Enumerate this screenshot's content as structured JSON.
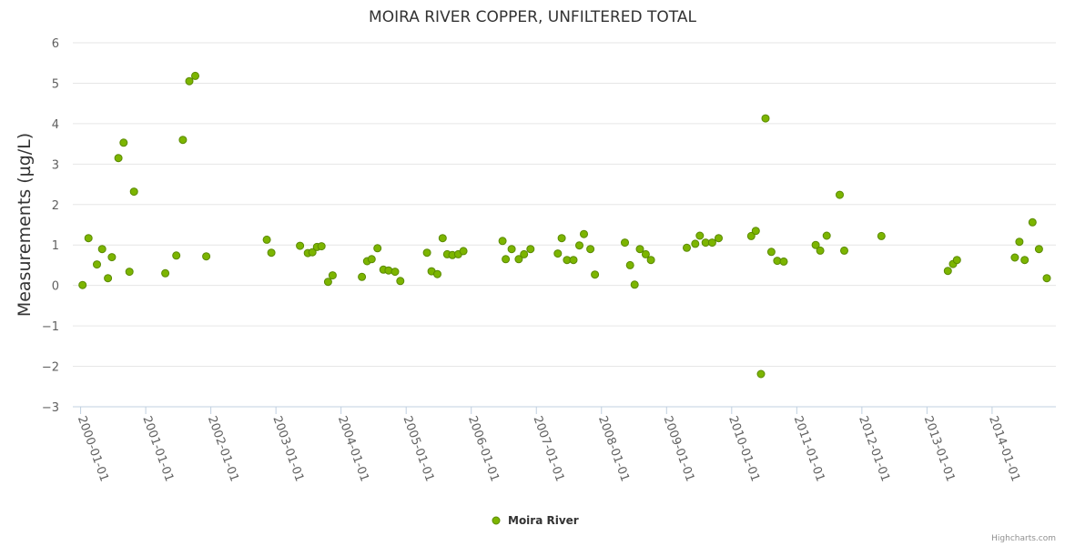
{
  "chart_data": {
    "type": "scatter",
    "title": "MOIRA RIVER COPPER, UNFILTERED TOTAL",
    "xlabel": "",
    "ylabel": "Measurements (µg/L)",
    "ylim": [
      -3,
      6
    ],
    "yticks": [
      6,
      5,
      4,
      3,
      2,
      1,
      0,
      -1,
      -2,
      -3
    ],
    "xlim": [
      1999.88,
      2014.98
    ],
    "xticks": [
      {
        "label": "2000-01-01",
        "value": 2000
      },
      {
        "label": "2001-01-01",
        "value": 2001
      },
      {
        "label": "2002-01-01",
        "value": 2002
      },
      {
        "label": "2003-01-01",
        "value": 2003
      },
      {
        "label": "2004-01-01",
        "value": 2004
      },
      {
        "label": "2005-01-01",
        "value": 2005
      },
      {
        "label": "2006-01-01",
        "value": 2006
      },
      {
        "label": "2007-01-01",
        "value": 2007
      },
      {
        "label": "2008-01-01",
        "value": 2008
      },
      {
        "label": "2009-01-01",
        "value": 2009
      },
      {
        "label": "2010-01-01",
        "value": 2010
      },
      {
        "label": "2011-01-01",
        "value": 2011
      },
      {
        "label": "2012-01-01",
        "value": 2012
      },
      {
        "label": "2013-01-01",
        "value": 2013
      },
      {
        "label": "2014-01-01",
        "value": 2014
      }
    ],
    "grid": true,
    "legend": "bottom-center",
    "series": [
      {
        "name": "Moira River",
        "color": "#7cb500",
        "stroke": "#5a8a00",
        "x": [
          2000.03,
          2000.12,
          2000.25,
          2000.33,
          2000.42,
          2000.48,
          2000.58,
          2000.66,
          2000.75,
          2000.82,
          2001.3,
          2001.47,
          2001.57,
          2001.67,
          2001.76,
          2001.93,
          2002.86,
          2002.93,
          2003.37,
          2003.49,
          2003.56,
          2003.63,
          2003.7,
          2003.8,
          2003.87,
          2004.32,
          2004.4,
          2004.47,
          2004.56,
          2004.65,
          2004.73,
          2004.83,
          2004.91,
          2005.32,
          2005.39,
          2005.48,
          2005.56,
          2005.63,
          2005.71,
          2005.8,
          2005.88,
          2006.48,
          2006.53,
          2006.62,
          2006.73,
          2006.81,
          2006.91,
          2007.33,
          2007.39,
          2007.47,
          2007.57,
          2007.66,
          2007.73,
          2007.83,
          2007.9,
          2008.36,
          2008.44,
          2008.51,
          2008.59,
          2008.68,
          2008.76,
          2009.31,
          2009.44,
          2009.51,
          2009.6,
          2009.7,
          2009.8,
          2010.3,
          2010.37,
          2010.45,
          2010.52,
          2010.61,
          2010.7,
          2010.8,
          2011.29,
          2011.36,
          2011.46,
          2011.66,
          2011.73,
          2012.3,
          2013.32,
          2013.4,
          2013.46,
          2014.35,
          2014.42,
          2014.5,
          2014.62,
          2014.72,
          2014.84
        ],
        "y": [
          0.01,
          1.17,
          0.52,
          0.9,
          0.18,
          0.7,
          3.15,
          3.53,
          0.34,
          2.32,
          0.3,
          0.74,
          3.6,
          5.05,
          5.18,
          0.72,
          1.13,
          0.81,
          0.98,
          0.8,
          0.82,
          0.95,
          0.97,
          0.09,
          0.25,
          0.21,
          0.6,
          0.65,
          0.92,
          0.39,
          0.37,
          0.34,
          0.11,
          0.81,
          0.35,
          0.28,
          1.17,
          0.77,
          0.75,
          0.77,
          0.85,
          1.1,
          0.65,
          0.9,
          0.65,
          0.77,
          0.9,
          0.79,
          1.17,
          0.63,
          0.63,
          0.99,
          1.27,
          0.9,
          0.27,
          1.06,
          0.5,
          0.02,
          0.9,
          0.77,
          0.63,
          0.93,
          1.03,
          1.23,
          1.06,
          1.06,
          1.17,
          1.22,
          1.35,
          -2.19,
          4.13,
          0.83,
          0.61,
          0.59,
          1.0,
          0.86,
          1.23,
          2.24,
          0.86,
          1.22,
          0.36,
          0.53,
          0.63,
          0.69,
          1.08,
          0.63,
          1.56,
          0.9,
          0.18
        ]
      }
    ]
  },
  "credits": "Highcharts.com"
}
